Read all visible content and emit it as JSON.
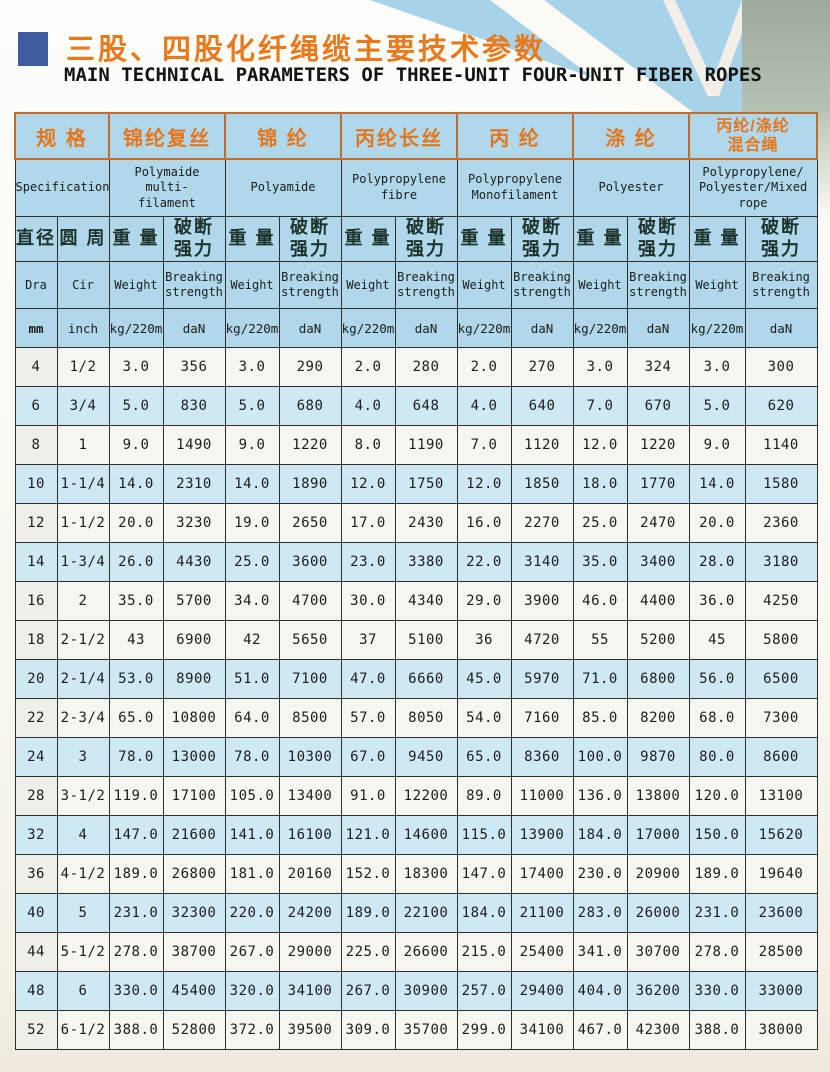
{
  "page": {
    "title_zh": "三股、四股化纤绳缆主要技术参数",
    "title_en": "MAIN TECHNICAL PARAMETERS OF THREE-UNIT FOUR-UNIT FIBER ROPES"
  },
  "colors": {
    "accent_orange": "#e4761d",
    "title_orange": "#e8791c",
    "bullet_blue": "#3d5c9e",
    "deco_blue": "#a7d3e9",
    "header_blue": "#b0d8ea",
    "row_blue": "#cfe9f4",
    "row_white": "#f6f6f1",
    "border_dark": "#2e2e2e",
    "border_orange": "#c06c2b"
  },
  "table": {
    "groups": [
      {
        "zh": "规 格",
        "en": "Specification"
      },
      {
        "zh": "锦纶复丝",
        "en": "Polymaide multi-\nfilament"
      },
      {
        "zh": "锦 纶",
        "en": "Polyamide"
      },
      {
        "zh": "丙纶长丝",
        "en": "Polypropylene\nfibre"
      },
      {
        "zh": "丙 纶",
        "en": "Polypropylene\nMonofilament"
      },
      {
        "zh": "涤 纶",
        "en": "Polyester"
      },
      {
        "zh": "丙纶/涤纶\n混合绳",
        "en": "Polypropylene/\nPolyester/Mixed\nrope"
      }
    ],
    "subheads": {
      "dia_zh": "直径",
      "cir_zh": "圆 周",
      "weight_zh": "重 量",
      "strength_zh": "破断\n强力",
      "dia_en": "Dra",
      "cir_en": "Cir",
      "weight_en": "Weight",
      "strength_en": "Breaking\nstrength",
      "dia_unit": "mm",
      "cir_unit": "inch",
      "weight_unit": "kg/220m",
      "strength_unit": "daN"
    },
    "rows": [
      {
        "dia": "4",
        "cir": "1/2",
        "shade": "w",
        "values": [
          "3.0",
          "356",
          "3.0",
          "290",
          "2.0",
          "280",
          "2.0",
          "270",
          "3.0",
          "324",
          "3.0",
          "300"
        ]
      },
      {
        "dia": "6",
        "cir": "3/4",
        "shade": "b",
        "values": [
          "5.0",
          "830",
          "5.0",
          "680",
          "4.0",
          "648",
          "4.0",
          "640",
          "7.0",
          "670",
          "5.0",
          "620"
        ]
      },
      {
        "dia": "8",
        "cir": "1",
        "shade": "w",
        "values": [
          "9.0",
          "1490",
          "9.0",
          "1220",
          "8.0",
          "1190",
          "7.0",
          "1120",
          "12.0",
          "1220",
          "9.0",
          "1140"
        ]
      },
      {
        "dia": "10",
        "cir": "1-1/4",
        "shade": "b",
        "values": [
          "14.0",
          "2310",
          "14.0",
          "1890",
          "12.0",
          "1750",
          "12.0",
          "1850",
          "18.0",
          "1770",
          "14.0",
          "1580"
        ]
      },
      {
        "dia": "12",
        "cir": "1-1/2",
        "shade": "w",
        "values": [
          "20.0",
          "3230",
          "19.0",
          "2650",
          "17.0",
          "2430",
          "16.0",
          "2270",
          "25.0",
          "2470",
          "20.0",
          "2360"
        ]
      },
      {
        "dia": "14",
        "cir": "1-3/4",
        "shade": "b",
        "values": [
          "26.0",
          "4430",
          "25.0",
          "3600",
          "23.0",
          "3380",
          "22.0",
          "3140",
          "35.0",
          "3400",
          "28.0",
          "3180"
        ]
      },
      {
        "dia": "16",
        "cir": "2",
        "shade": "w",
        "values": [
          "35.0",
          "5700",
          "34.0",
          "4700",
          "30.0",
          "4340",
          "29.0",
          "3900",
          "46.0",
          "4400",
          "36.0",
          "4250"
        ]
      },
      {
        "dia": "18",
        "cir": "2-1/2",
        "shade": "w",
        "values": [
          "43",
          "6900",
          "42",
          "5650",
          "37",
          "5100",
          "36",
          "4720",
          "55",
          "5200",
          "45",
          "5800"
        ]
      },
      {
        "dia": "20",
        "cir": "2-1/4",
        "shade": "b",
        "values": [
          "53.0",
          "8900",
          "51.0",
          "7100",
          "47.0",
          "6660",
          "45.0",
          "5970",
          "71.0",
          "6800",
          "56.0",
          "6500"
        ]
      },
      {
        "dia": "22",
        "cir": "2-3/4",
        "shade": "w",
        "values": [
          "65.0",
          "10800",
          "64.0",
          "8500",
          "57.0",
          "8050",
          "54.0",
          "7160",
          "85.0",
          "8200",
          "68.0",
          "7300"
        ]
      },
      {
        "dia": "24",
        "cir": "3",
        "shade": "b",
        "values": [
          "78.0",
          "13000",
          "78.0",
          "10300",
          "67.0",
          "9450",
          "65.0",
          "8360",
          "100.0",
          "9870",
          "80.0",
          "8600"
        ]
      },
      {
        "dia": "28",
        "cir": "3-1/2",
        "shade": "w",
        "values": [
          "119.0",
          "17100",
          "105.0",
          "13400",
          "91.0",
          "12200",
          "89.0",
          "11000",
          "136.0",
          "13800",
          "120.0",
          "13100"
        ]
      },
      {
        "dia": "32",
        "cir": "4",
        "shade": "b",
        "values": [
          "147.0",
          "21600",
          "141.0",
          "16100",
          "121.0",
          "14600",
          "115.0",
          "13900",
          "184.0",
          "17000",
          "150.0",
          "15620"
        ]
      },
      {
        "dia": "36",
        "cir": "4-1/2",
        "shade": "w",
        "values": [
          "189.0",
          "26800",
          "181.0",
          "20160",
          "152.0",
          "18300",
          "147.0",
          "17400",
          "230.0",
          "20900",
          "189.0",
          "19640"
        ]
      },
      {
        "dia": "40",
        "cir": "5",
        "shade": "b",
        "values": [
          "231.0",
          "32300",
          "220.0",
          "24200",
          "189.0",
          "22100",
          "184.0",
          "21100",
          "283.0",
          "26000",
          "231.0",
          "23600"
        ]
      },
      {
        "dia": "44",
        "cir": "5-1/2",
        "shade": "w",
        "values": [
          "278.0",
          "38700",
          "267.0",
          "29000",
          "225.0",
          "26600",
          "215.0",
          "25400",
          "341.0",
          "30700",
          "278.0",
          "28500"
        ]
      },
      {
        "dia": "48",
        "cir": "6",
        "shade": "b",
        "values": [
          "330.0",
          "45400",
          "320.0",
          "34100",
          "267.0",
          "30900",
          "257.0",
          "29400",
          "404.0",
          "36200",
          "330.0",
          "33000"
        ]
      },
      {
        "dia": "52",
        "cir": "6-1/2",
        "shade": "w",
        "values": [
          "388.0",
          "52800",
          "372.0",
          "39500",
          "309.0",
          "35700",
          "299.0",
          "34100",
          "467.0",
          "42300",
          "388.0",
          "38000"
        ]
      }
    ]
  }
}
